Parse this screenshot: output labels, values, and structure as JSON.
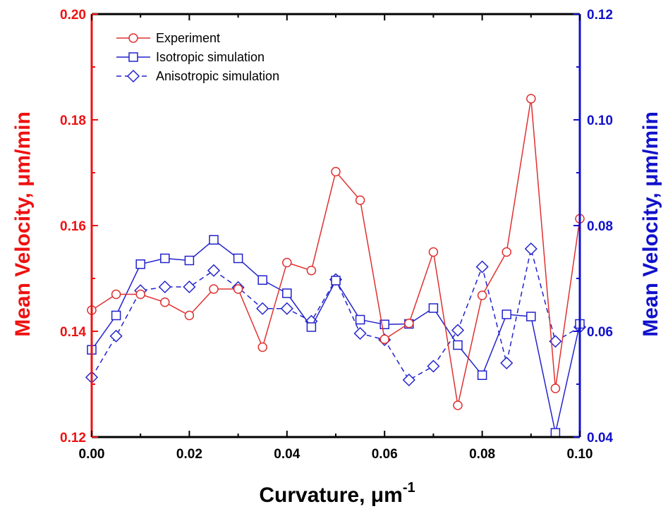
{
  "chart_data": {
    "type": "line",
    "xlabel": "Curvature, μm",
    "xlabel_sup": "-1",
    "ylabel_left": "Mean Velocity, μm/min",
    "ylabel_right": "Mean Velocity, μm/min",
    "xlim": [
      0,
      0.1
    ],
    "ylim_left": [
      0.12,
      0.2
    ],
    "ylim_right": [
      0.04,
      0.12
    ],
    "x_ticks": [
      "0.00",
      "0.02",
      "0.04",
      "0.06",
      "0.08",
      "0.10"
    ],
    "y_left_ticks": [
      "0.12",
      "0.14",
      "0.16",
      "0.18",
      "0.20"
    ],
    "y_right_ticks": [
      "0.04",
      "0.06",
      "0.08",
      "0.10",
      "0.12"
    ],
    "legend_position": "top-left",
    "grid": false,
    "colors": {
      "left_axis": "#ee1111",
      "right_axis": "#1111cc",
      "experiment": "#e03030",
      "simulation": "#2222cc"
    },
    "series": [
      {
        "name": "Experiment",
        "axis": "left",
        "marker": "circle",
        "line": "solid",
        "x": [
          0.0,
          0.005,
          0.01,
          0.015,
          0.02,
          0.025,
          0.03,
          0.035,
          0.04,
          0.045,
          0.05,
          0.055,
          0.06,
          0.065,
          0.07,
          0.075,
          0.08,
          0.085,
          0.09,
          0.095,
          0.1
        ],
        "y": [
          0.144,
          0.147,
          0.147,
          0.1455,
          0.143,
          0.148,
          0.148,
          0.137,
          0.153,
          0.1515,
          0.1702,
          0.1648,
          0.1385,
          0.1415,
          0.155,
          0.126,
          0.1468,
          0.155,
          0.184,
          0.1292,
          0.1613
        ]
      },
      {
        "name": "Isotropic simulation",
        "axis": "right",
        "marker": "square",
        "line": "solid",
        "x": [
          0.0,
          0.005,
          0.01,
          0.015,
          0.02,
          0.025,
          0.03,
          0.035,
          0.04,
          0.045,
          0.05,
          0.055,
          0.06,
          0.065,
          0.07,
          0.075,
          0.08,
          0.085,
          0.09,
          0.095,
          0.1
        ],
        "y": [
          0.0565,
          0.063,
          0.0727,
          0.0738,
          0.0734,
          0.0773,
          0.0738,
          0.0697,
          0.0672,
          0.0608,
          0.0696,
          0.0622,
          0.0613,
          0.0614,
          0.0644,
          0.0574,
          0.0517,
          0.0632,
          0.0628,
          0.0408,
          0.0614
        ]
      },
      {
        "name": "Anisotropic simulation",
        "axis": "right",
        "marker": "diamond",
        "line": "dashed",
        "x": [
          0.0,
          0.005,
          0.01,
          0.015,
          0.02,
          0.025,
          0.03,
          0.035,
          0.04,
          0.045,
          0.05,
          0.055,
          0.06,
          0.065,
          0.07,
          0.075,
          0.08,
          0.085,
          0.09,
          0.095,
          0.1
        ],
        "y": [
          0.0513,
          0.0591,
          0.0677,
          0.0684,
          0.0684,
          0.0715,
          0.0683,
          0.0643,
          0.0643,
          0.0619,
          0.0698,
          0.0596,
          0.0584,
          0.0508,
          0.0534,
          0.0602,
          0.0722,
          0.054,
          0.0756,
          0.0581,
          0.0608
        ]
      }
    ]
  }
}
